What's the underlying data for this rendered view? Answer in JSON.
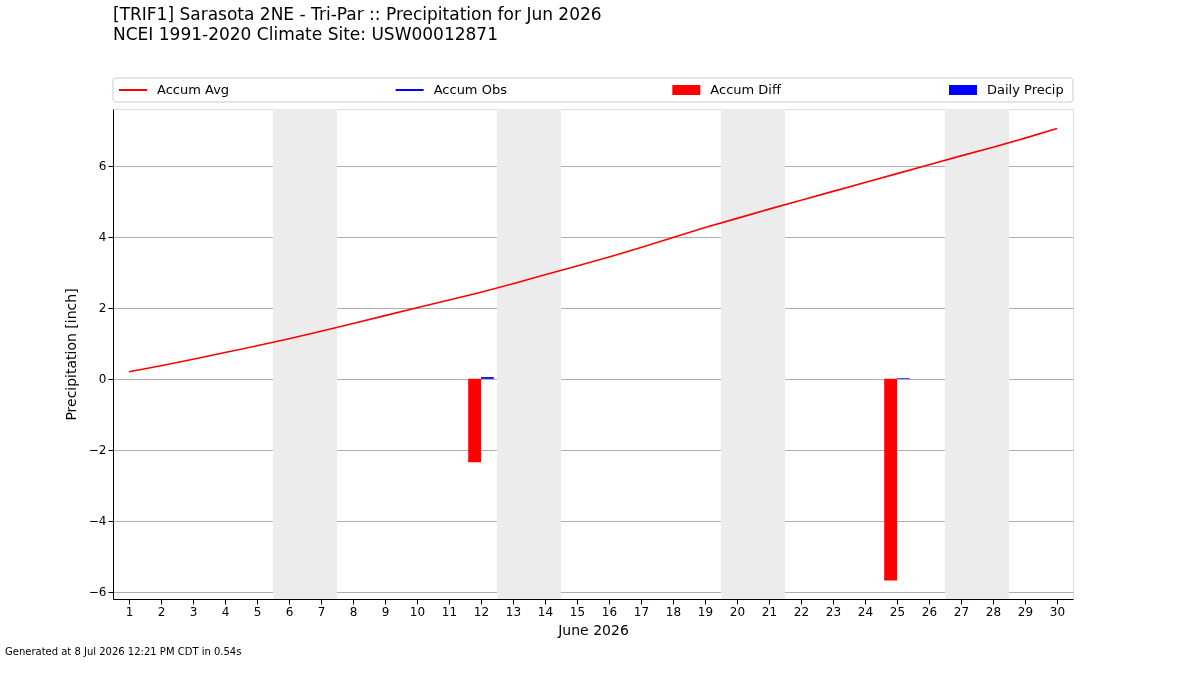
{
  "chart_data": {
    "type": "line",
    "title": "[TRIF1] Sarasota 2NE - Tri-Par :: Precipitation for Jun 2026",
    "subtitle": "NCEI 1991-2020 Climate Site: USW00012871",
    "xlabel": "June 2026",
    "ylabel": "Precipitation [inch]",
    "x": [
      1,
      2,
      3,
      4,
      5,
      6,
      7,
      8,
      9,
      10,
      11,
      12,
      13,
      14,
      15,
      16,
      17,
      18,
      19,
      20,
      21,
      22,
      23,
      24,
      25,
      26,
      27,
      28,
      29,
      30
    ],
    "series": [
      {
        "name": "Accum Avg",
        "color": "#ff0000",
        "values": [
          0.2,
          0.37,
          0.55,
          0.74,
          0.93,
          1.13,
          1.34,
          1.56,
          1.78,
          2.0,
          2.22,
          2.44,
          2.68,
          2.93,
          3.18,
          3.43,
          3.7,
          3.98,
          4.26,
          4.52,
          4.78,
          5.03,
          5.28,
          5.53,
          5.78,
          6.03,
          6.28,
          6.52,
          6.78,
          7.05
        ]
      },
      {
        "name": "Accum Obs",
        "color": "#0000ff",
        "values": [
          null,
          null,
          null,
          null,
          null,
          null,
          null,
          null,
          null,
          null,
          null,
          null,
          null,
          null,
          null,
          null,
          null,
          null,
          null,
          null,
          null,
          null,
          null,
          null,
          null,
          null,
          null,
          null,
          null,
          null
        ]
      },
      {
        "name": "Accum Diff",
        "type": "bar",
        "color": "#ff0000",
        "values": [
          null,
          null,
          null,
          null,
          null,
          null,
          null,
          null,
          null,
          null,
          null,
          -2.35,
          null,
          null,
          null,
          null,
          null,
          null,
          null,
          null,
          null,
          null,
          null,
          null,
          -5.68,
          null,
          null,
          null,
          null,
          null
        ]
      },
      {
        "name": "Daily Precip",
        "type": "bar",
        "color": "#0000ff",
        "values": [
          null,
          null,
          null,
          null,
          null,
          null,
          null,
          null,
          null,
          null,
          null,
          0.05,
          null,
          null,
          null,
          null,
          null,
          null,
          null,
          null,
          null,
          null,
          null,
          null,
          0.02,
          null,
          null,
          null,
          null,
          null
        ]
      }
    ],
    "xlim": [
      0.5,
      30.5
    ],
    "xticks": [
      1,
      2,
      3,
      4,
      5,
      6,
      7,
      8,
      9,
      10,
      11,
      12,
      13,
      14,
      15,
      16,
      17,
      18,
      19,
      20,
      21,
      22,
      23,
      24,
      25,
      26,
      27,
      28,
      29,
      30
    ],
    "ylim": [
      -6.2,
      7.6
    ],
    "yticks": [
      {
        "value": -6,
        "label": "−6"
      },
      {
        "value": -4,
        "label": "−4"
      },
      {
        "value": -2,
        "label": "−2"
      },
      0,
      2,
      4,
      6
    ],
    "bands": [
      {
        "axis": "x",
        "from": 5.5,
        "to": 7.5,
        "color": "#ececec"
      },
      {
        "axis": "x",
        "from": 12.5,
        "to": 14.5,
        "color": "#ececec"
      },
      {
        "axis": "x",
        "from": 19.5,
        "to": 21.5,
        "color": "#ececec"
      },
      {
        "axis": "x",
        "from": 26.5,
        "to": 28.5,
        "color": "#ececec"
      }
    ],
    "grid": "y",
    "legend": "top",
    "marker": "none",
    "line_style": "solid",
    "annotations": [
      "Generated at 8 Jul 2026 12:21 PM CDT in 0.54s"
    ]
  }
}
